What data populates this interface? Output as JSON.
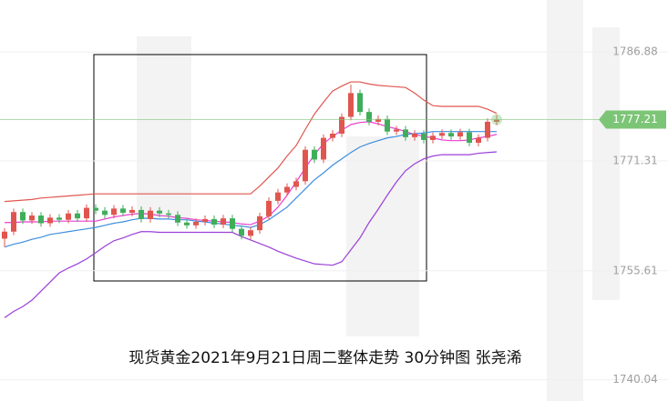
{
  "chart_data": {
    "type": "candlestick",
    "title": "现货黄金2021年9月21日周二整体走势 30分钟图  张尧浠",
    "ylim": [
      1737.0,
      1794.3
    ],
    "yticks": [
      1786.88,
      1771.31,
      1755.61,
      1740.04
    ],
    "grid": true,
    "last_price": 1777.21,
    "last_price_color": "#7cc576",
    "up_color": "#e0564f",
    "down_color": "#3fae5a",
    "open": [
      1760.2,
      1761.2,
      1764.0,
      1762.8,
      1763.5,
      1762.4,
      1763.2,
      1762.9,
      1763.8,
      1763.1,
      1764.6,
      1764.2,
      1763.6,
      1764.5,
      1763.9,
      1764.3,
      1763.0,
      1764.2,
      1763.8,
      1763.6,
      1762.5,
      1762.1,
      1762.6,
      1763.0,
      1762.2,
      1763.1,
      1761.6,
      1760.6,
      1761.4,
      1763.4,
      1765.6,
      1766.8,
      1767.6,
      1768.4,
      1772.9,
      1771.5,
      1774.6,
      1775.2,
      1777.6,
      1781.0,
      1778.3,
      1776.9,
      1777.3,
      1775.5,
      1775.8,
      1774.7,
      1775.2,
      1774.3,
      1774.9,
      1775.3,
      1774.8,
      1775.4,
      1773.9,
      1774.6,
      1776.9
    ],
    "high": [
      1761.7,
      1764.5,
      1764.5,
      1764.0,
      1764.0,
      1763.7,
      1763.7,
      1764.3,
      1764.3,
      1765.1,
      1765.1,
      1764.7,
      1765.0,
      1765.0,
      1764.8,
      1764.8,
      1764.7,
      1764.7,
      1764.3,
      1764.1,
      1763.0,
      1763.1,
      1763.5,
      1763.5,
      1763.6,
      1763.6,
      1762.1,
      1761.9,
      1763.9,
      1766.1,
      1767.3,
      1768.1,
      1768.9,
      1773.4,
      1773.4,
      1775.1,
      1775.7,
      1778.1,
      1782.2,
      1781.5,
      1778.8,
      1777.8,
      1777.8,
      1776.3,
      1776.3,
      1775.7,
      1775.7,
      1775.4,
      1775.8,
      1775.8,
      1775.9,
      1775.9,
      1775.1,
      1777.4,
      1777.9
    ],
    "low": [
      1759.0,
      1760.7,
      1762.3,
      1762.3,
      1761.9,
      1761.9,
      1762.4,
      1762.4,
      1762.6,
      1762.6,
      1763.7,
      1763.1,
      1763.1,
      1763.4,
      1763.4,
      1762.5,
      1762.5,
      1763.3,
      1763.1,
      1762.0,
      1761.6,
      1761.6,
      1762.1,
      1761.7,
      1761.7,
      1761.1,
      1760.1,
      1760.1,
      1760.9,
      1762.9,
      1765.1,
      1766.3,
      1767.1,
      1767.9,
      1771.0,
      1771.0,
      1774.1,
      1774.7,
      1777.1,
      1777.8,
      1776.4,
      1776.4,
      1775.0,
      1775.0,
      1774.2,
      1774.2,
      1773.8,
      1773.8,
      1774.4,
      1774.3,
      1774.3,
      1773.4,
      1773.4,
      1774.1,
      1776.4
    ],
    "close": [
      1761.2,
      1764.0,
      1762.8,
      1763.5,
      1762.4,
      1763.2,
      1762.9,
      1763.8,
      1763.1,
      1764.6,
      1764.2,
      1763.6,
      1764.5,
      1763.9,
      1764.3,
      1763.0,
      1764.2,
      1763.8,
      1763.6,
      1762.5,
      1762.1,
      1762.6,
      1763.0,
      1762.2,
      1763.1,
      1761.6,
      1760.6,
      1761.4,
      1763.4,
      1765.6,
      1766.8,
      1767.6,
      1768.4,
      1772.9,
      1771.5,
      1774.6,
      1775.2,
      1777.6,
      1781.0,
      1778.3,
      1776.9,
      1777.3,
      1775.5,
      1775.8,
      1774.7,
      1775.2,
      1774.3,
      1774.9,
      1775.3,
      1774.8,
      1775.4,
      1773.9,
      1774.6,
      1776.9,
      1777.21
    ],
    "lines": [
      {
        "color": "#e0564f",
        "values": [
          1765.5,
          1765.6,
          1765.7,
          1765.8,
          1766.0,
          1766.1,
          1766.2,
          1766.3,
          1766.4,
          1766.5,
          1766.6,
          1766.6,
          1766.6,
          1766.6,
          1766.6,
          1766.6,
          1766.6,
          1766.6,
          1766.6,
          1766.6,
          1766.6,
          1766.6,
          1766.6,
          1766.6,
          1766.6,
          1766.6,
          1766.6,
          1766.6,
          1767.7,
          1769.0,
          1770.3,
          1772.0,
          1773.5,
          1775.8,
          1778.0,
          1779.7,
          1781.3,
          1782.0,
          1782.6,
          1782.6,
          1782.3,
          1782.1,
          1782.0,
          1781.9,
          1781.8,
          1781.0,
          1780.0,
          1779.2,
          1779.1,
          1779.1,
          1779.1,
          1779.1,
          1779.1,
          1778.7,
          1778.1
        ]
      },
      {
        "color": "#e83fd0",
        "values": [
          1762.5,
          1762.5,
          1762.6,
          1762.6,
          1762.6,
          1762.7,
          1762.7,
          1762.7,
          1762.7,
          1762.7,
          1762.7,
          1763.0,
          1763.3,
          1763.5,
          1763.7,
          1763.8,
          1763.7,
          1763.5,
          1763.4,
          1763.2,
          1763.1,
          1762.9,
          1762.8,
          1762.7,
          1762.6,
          1762.5,
          1762.3,
          1762.2,
          1762.7,
          1763.4,
          1764.7,
          1766.4,
          1768.3,
          1770.3,
          1772.2,
          1773.8,
          1774.8,
          1775.7,
          1776.5,
          1776.8,
          1776.9,
          1776.6,
          1776.2,
          1775.9,
          1775.5,
          1775.1,
          1774.8,
          1774.6,
          1774.3,
          1774.2,
          1774.2,
          1774.3,
          1774.6,
          1774.8,
          1775.1
        ]
      },
      {
        "color": "#3c8ee0",
        "values": [
          1759.0,
          1759.4,
          1759.7,
          1760.1,
          1760.4,
          1760.8,
          1761.0,
          1761.2,
          1761.4,
          1761.6,
          1761.8,
          1762.1,
          1762.4,
          1762.6,
          1762.9,
          1763.1,
          1763.1,
          1763.0,
          1763.0,
          1762.9,
          1762.9,
          1762.7,
          1762.6,
          1762.4,
          1762.3,
          1762.1,
          1762.0,
          1761.8,
          1762.2,
          1762.9,
          1763.8,
          1764.7,
          1766.0,
          1767.3,
          1768.6,
          1769.6,
          1770.7,
          1771.6,
          1772.5,
          1773.3,
          1773.8,
          1774.2,
          1774.6,
          1774.8,
          1775.1,
          1775.2,
          1775.3,
          1775.5,
          1775.5,
          1775.5,
          1775.5,
          1775.5,
          1775.5,
          1775.5,
          1775.5
        ]
      },
      {
        "color": "#9b3fd8",
        "values": [
          1748.9,
          1749.8,
          1750.5,
          1751.4,
          1752.7,
          1754.0,
          1755.3,
          1756.0,
          1756.6,
          1757.3,
          1758.2,
          1759.1,
          1759.9,
          1760.3,
          1760.8,
          1761.2,
          1761.2,
          1761.1,
          1761.1,
          1761.1,
          1761.1,
          1761.1,
          1761.1,
          1761.1,
          1761.1,
          1761.1,
          1760.5,
          1760.0,
          1759.5,
          1759.0,
          1758.4,
          1757.9,
          1757.4,
          1757.0,
          1756.6,
          1756.5,
          1756.4,
          1756.9,
          1758.6,
          1760.3,
          1762.5,
          1764.4,
          1766.4,
          1768.3,
          1769.9,
          1770.9,
          1771.6,
          1772.0,
          1772.2,
          1772.2,
          1772.2,
          1772.2,
          1772.4,
          1772.5,
          1772.6
        ]
      }
    ]
  }
}
